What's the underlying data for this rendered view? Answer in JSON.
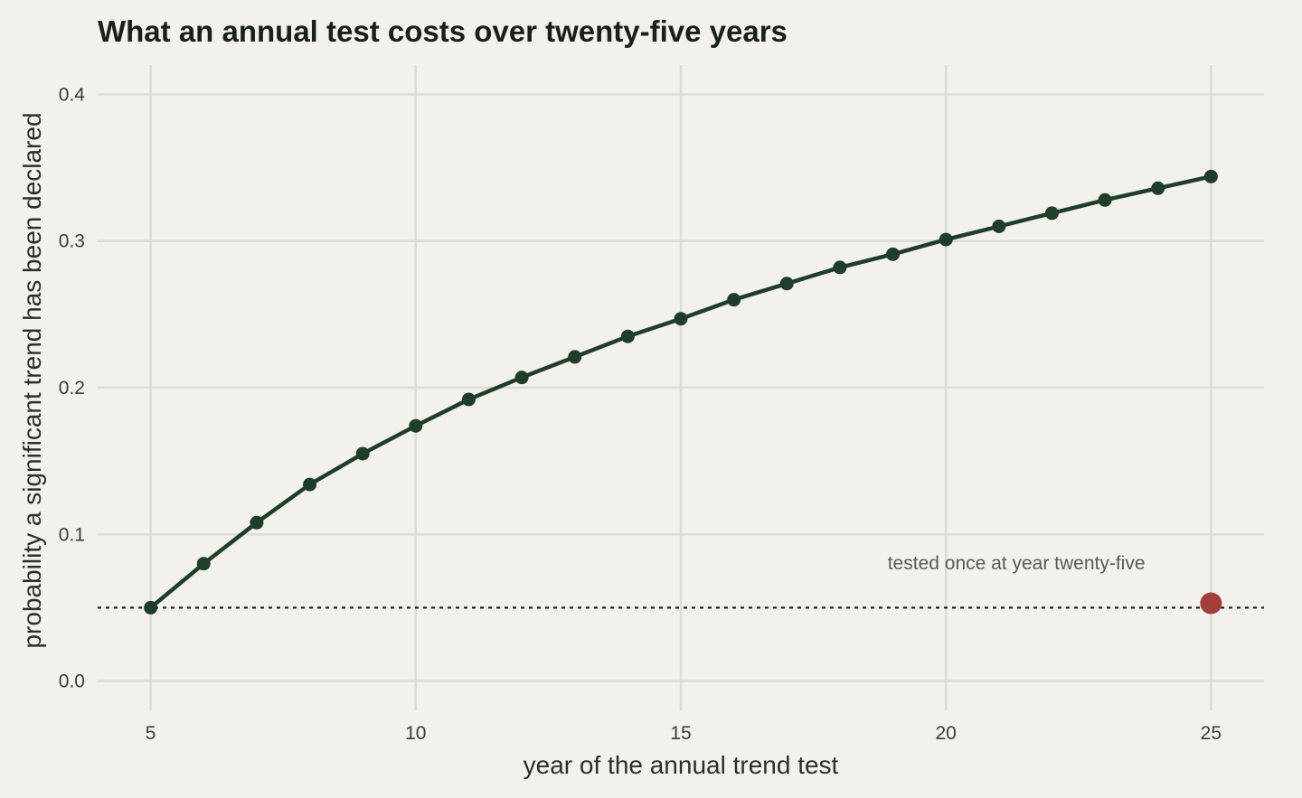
{
  "chart_data": {
    "type": "line",
    "title": "What an annual test costs over twenty-five years",
    "xlabel": "year of the annual trend test",
    "ylabel": "probability a significant trend has been declared",
    "xlim": [
      4,
      26
    ],
    "ylim": [
      -0.02,
      0.42
    ],
    "xticks": [
      5,
      10,
      15,
      20,
      25
    ],
    "yticks": [
      0.0,
      0.1,
      0.2,
      0.3,
      0.4
    ],
    "ytick_labels": [
      "0.0",
      "0.1",
      "0.2",
      "0.3",
      "0.4"
    ],
    "grid": true,
    "series": [
      {
        "x": [
          5,
          6,
          7,
          8,
          9,
          10,
          11,
          12,
          13,
          14,
          15,
          16,
          17,
          18,
          19,
          20,
          21,
          22,
          23,
          24,
          25
        ],
        "values": [
          0.05,
          0.08,
          0.108,
          0.134,
          0.155,
          0.174,
          0.192,
          0.207,
          0.221,
          0.235,
          0.247,
          0.26,
          0.271,
          0.282,
          0.291,
          0.301,
          0.31,
          0.319,
          0.328,
          0.336,
          0.344
        ],
        "color": "#1f3d2b"
      }
    ],
    "reference_line": {
      "y": 0.05,
      "style": "dotted",
      "color": "#222222"
    },
    "highlight_point": {
      "x": 25,
      "y": 0.053,
      "color": "#a63d3d"
    },
    "annotation": {
      "text": "tested once at year twenty-five",
      "x": 21.5,
      "y": 0.078
    }
  }
}
